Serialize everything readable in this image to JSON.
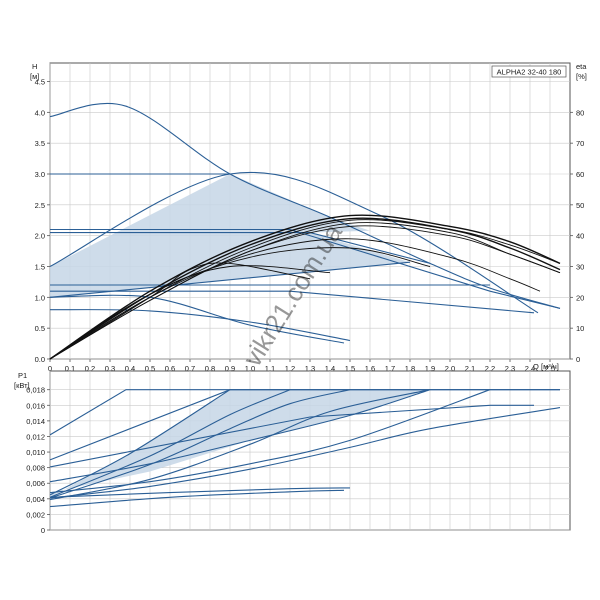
{
  "chart_data": [
    {
      "type": "line",
      "title": "ALPHA2 32-40 180",
      "ylabel": "H",
      "yunit": "[м]",
      "y2label": "eta",
      "y2unit": "[%]",
      "xlabel": "Q",
      "xunit": "[м³/ч]",
      "xlim": [
        0,
        2.6
      ],
      "ylim": [
        0,
        4.8
      ],
      "y2lim": [
        0,
        96
      ],
      "grid": true,
      "x_ticks": [
        "0",
        "0,1",
        "0,2",
        "0,3",
        "0,4",
        "0,5",
        "0,6",
        "0,7",
        "0,8",
        "0,9",
        "1,0",
        "1,1",
        "1,2",
        "1,3",
        "1,4",
        "1,5",
        "1,6",
        "1,7",
        "1,8",
        "1,9",
        "2,0",
        "2,1",
        "2,2",
        "2,3",
        "2,4",
        "2,5"
      ],
      "y_ticks": [
        "0.0",
        "0.5",
        "1.0",
        "1.5",
        "2.0",
        "2.5",
        "3.0",
        "3.5",
        "4.0",
        "4.5"
      ],
      "y2_ticks": [
        "0",
        "10",
        "20",
        "30",
        "40",
        "50",
        "60",
        "70",
        "80"
      ],
      "head_series": [
        {
          "x": [
            0,
            0.38,
            0.9,
            1.4,
            1.9,
            2.2,
            2.55
          ],
          "y": [
            3.93,
            4.1,
            3.0,
            2.3,
            1.55,
            1.15,
            0.82
          ]
        },
        {
          "x": [
            0,
            0.9
          ],
          "y": [
            3.0,
            3.0
          ]
        },
        {
          "x": [
            0,
            1.2,
            2.2,
            2.55
          ],
          "y": [
            2.1,
            2.1,
            1.1,
            0.82
          ]
        },
        {
          "x": [
            0,
            1.3,
            1.9
          ],
          "y": [
            2.05,
            2.05,
            1.55
          ]
        },
        {
          "x": [
            0,
            1.0,
            2.2
          ],
          "y": [
            1.2,
            1.2,
            1.2
          ]
        },
        {
          "x": [
            0,
            1.8
          ],
          "y": [
            1.0,
            1.57
          ]
        },
        {
          "x": [
            0,
            1.2,
            2.42
          ],
          "y": [
            1.1,
            1.1,
            0.75
          ]
        },
        {
          "x": [
            0,
            0.9,
            1.65,
            2.44
          ],
          "y": [
            1.5,
            3.0,
            2.33,
            0.75
          ]
        },
        {
          "x": [
            0,
            0.5,
            1.0,
            1.5
          ],
          "y": [
            0.8,
            0.78,
            0.6,
            0.3
          ]
        },
        {
          "x": [
            0,
            0.5,
            1.0,
            1.47
          ],
          "y": [
            1.0,
            1.0,
            0.55,
            0.26
          ]
        }
      ],
      "eta_series": [
        {
          "x": [
            0,
            0.5,
            1.0,
            1.5,
            2.0,
            2.3,
            2.55
          ],
          "y": [
            0,
            22,
            38,
            46.5,
            43,
            38,
            31
          ]
        },
        {
          "x": [
            0,
            0.5,
            1.0,
            1.5,
            2.0,
            2.3,
            2.55
          ],
          "y": [
            0,
            21,
            37,
            45.5,
            42,
            36,
            29
          ]
        },
        {
          "x": [
            0,
            0.5,
            1.0,
            1.5,
            2.0,
            2.3,
            2.55
          ],
          "y": [
            0,
            20,
            36,
            45,
            42,
            37,
            31
          ]
        },
        {
          "x": [
            0,
            0.5,
            1.0,
            1.5,
            2.0,
            2.3,
            2.55
          ],
          "y": [
            0,
            19,
            35,
            44,
            41,
            34,
            28
          ]
        },
        {
          "x": [
            0,
            0.5,
            1.0,
            1.5,
            2.0,
            2.3,
            2.55
          ],
          "y": [
            0,
            19,
            35,
            43,
            40,
            34,
            28
          ]
        },
        {
          "x": [
            0,
            0.5,
            1.0,
            1.5,
            2.0,
            2.3,
            2.45
          ],
          "y": [
            0,
            20,
            34,
            39,
            33,
            26,
            22
          ]
        },
        {
          "x": [
            0,
            0.5,
            1.0,
            1.5,
            1.9
          ],
          "y": [
            0,
            21,
            33,
            36,
            30
          ]
        },
        {
          "x": [
            0,
            0.5,
            0.9,
            1.4
          ],
          "y": [
            0,
            21,
            30,
            28
          ]
        },
        {
          "x": [
            0,
            0.5,
            0.7,
            0.9,
            1.3
          ],
          "y": [
            0,
            20,
            29,
            31,
            26
          ]
        }
      ]
    },
    {
      "type": "line",
      "ylabel": "P1",
      "yunit": "[кВт]",
      "xlim": [
        0,
        2.6
      ],
      "ylim": [
        0,
        0.0204
      ],
      "grid": true,
      "y_ticks": [
        "0",
        "0,002",
        "0,004",
        "0,006",
        "0,008",
        "0,010",
        "0,012",
        "0,014",
        "0,016",
        "0,018"
      ],
      "power_series": [
        {
          "x": [
            0,
            0.38,
            2.55
          ],
          "y": [
            0.0122,
            0.018,
            0.018
          ]
        },
        {
          "x": [
            0,
            0.9,
            2.55
          ],
          "y": [
            0.009,
            0.018,
            0.018
          ]
        },
        {
          "x": [
            0,
            1.3,
            2.2,
            2.42
          ],
          "y": [
            0.0081,
            0.0145,
            0.016,
            0.016
          ]
        },
        {
          "x": [
            0,
            0.5,
            1.0,
            1.5,
            1.9
          ],
          "y": [
            0.0062,
            0.0085,
            0.0115,
            0.0147,
            0.018
          ]
        },
        {
          "x": [
            0,
            0.5,
            1.0,
            1.5,
            2.2
          ],
          "y": [
            0.0048,
            0.0062,
            0.0085,
            0.0115,
            0.018
          ]
        },
        {
          "x": [
            0,
            0.5,
            1.0,
            1.5,
            1.9,
            2.55
          ],
          "y": [
            0.0041,
            0.0056,
            0.0078,
            0.0106,
            0.013,
            0.0157
          ]
        },
        {
          "x": [
            0,
            0.5,
            1.0,
            1.4,
            1.9
          ],
          "y": [
            0.0039,
            0.0065,
            0.011,
            0.0152,
            0.018
          ]
        },
        {
          "x": [
            0,
            0.5,
            0.9,
            1.2,
            1.5
          ],
          "y": [
            0.0041,
            0.0084,
            0.013,
            0.0162,
            0.018
          ]
        },
        {
          "x": [
            0,
            0.5,
            0.9,
            1.2
          ],
          "y": [
            0.0042,
            0.0095,
            0.0148,
            0.018
          ]
        },
        {
          "x": [
            0,
            0.4,
            0.9
          ],
          "y": [
            0.0045,
            0.0098,
            0.018
          ]
        },
        {
          "x": [
            0,
            0.6,
            1.2,
            1.5
          ],
          "y": [
            0.0042,
            0.0048,
            0.0053,
            0.0054
          ]
        },
        {
          "x": [
            0,
            0.6,
            1.2,
            1.47
          ],
          "y": [
            0.003,
            0.0042,
            0.0049,
            0.0051
          ]
        }
      ]
    }
  ],
  "colors": {
    "curve": "#2b5f96",
    "eta": "#111111",
    "fill": "#c6d6e6",
    "grid": "#c9c9c9",
    "axis": "#555555"
  },
  "watermark": "vikr21.com.ua"
}
